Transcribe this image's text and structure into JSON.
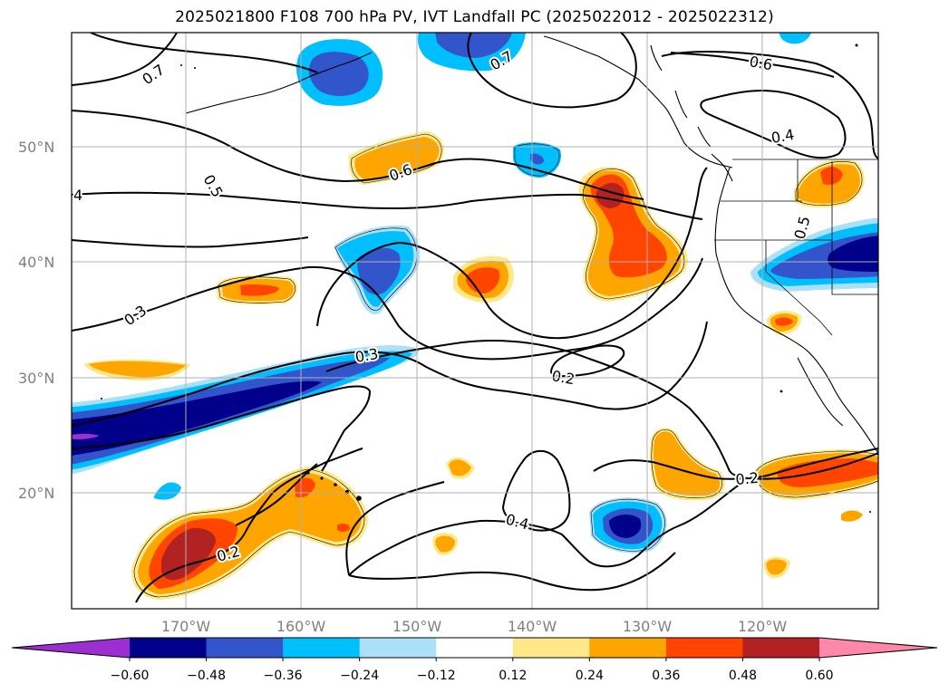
{
  "title": "2025021800 F108 700 hPa PV, IVT Landfall PC (2025022012 - 2025022312)",
  "lat_ticks": [
    "50°N",
    "40°N",
    "30°N",
    "20°N"
  ],
  "lon_ticks": [
    "170°W",
    "160°W",
    "150°W",
    "140°W",
    "130°W",
    "120°W"
  ],
  "contour_labels": [
    "0.7",
    "0.7",
    "0.6",
    "0.4",
    "4",
    "0.5",
    "0.6",
    "0.5",
    "0.3",
    "0.3",
    "0.2",
    "0.4",
    "0.2",
    "0.2"
  ],
  "colorbar": {
    "ticks": [
      "−0.60",
      "−0.48",
      "−0.36",
      "−0.24",
      "−0.12",
      "0.12",
      "0.24",
      "0.36",
      "0.48",
      "0.60"
    ],
    "colors": [
      "#9b2fd0",
      "#00008b",
      "#3355cc",
      "#00bfff",
      "#abe0fb",
      "#ffffff",
      "#ffe88a",
      "#ffa500",
      "#ff4500",
      "#b22222",
      "#ff88aa"
    ]
  }
}
